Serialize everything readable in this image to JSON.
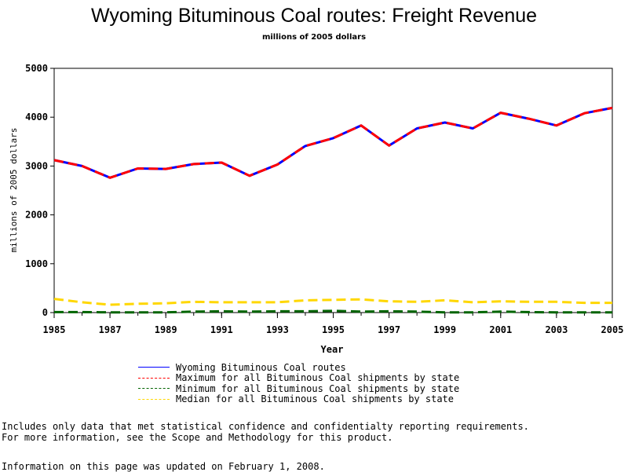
{
  "title": "Wyoming Bituminous Coal routes: Freight Revenue",
  "subtitle": "millions of 2005 dollars",
  "chart_data": {
    "type": "line",
    "title": "Wyoming Bituminous Coal routes: Freight Revenue",
    "subtitle": "millions of 2005 dollars",
    "xlabel": "Year",
    "ylabel": "millions of 2005 dollars",
    "x": [
      1985,
      1986,
      1987,
      1988,
      1989,
      1990,
      1991,
      1992,
      1993,
      1994,
      1995,
      1996,
      1997,
      1998,
      1999,
      2000,
      2001,
      2002,
      2003,
      2004,
      2005
    ],
    "xlim": [
      1985,
      2005
    ],
    "ylim": [
      0,
      5000
    ],
    "x_ticks": [
      "1985",
      "1987",
      "1989",
      "1991",
      "1993",
      "1995",
      "1997",
      "1999",
      "2001",
      "2003",
      "2005"
    ],
    "y_ticks": [
      "0",
      "1000",
      "2000",
      "3000",
      "4000",
      "5000"
    ],
    "grid": false,
    "legend_position": "bottom",
    "series": [
      {
        "name": "Wyoming Bituminous Coal routes",
        "color": "#0000ff",
        "style": "solid",
        "values": [
          3120,
          3000,
          2760,
          2950,
          2940,
          3040,
          3070,
          2800,
          3030,
          3410,
          3570,
          3830,
          3420,
          3770,
          3890,
          3770,
          4090,
          3970,
          3830,
          4080,
          4190
        ]
      },
      {
        "name": "Maximum for all Bituminous Coal shipments by state",
        "color": "#ff0000",
        "style": "dashed",
        "values": [
          3120,
          3000,
          2760,
          2950,
          2940,
          3040,
          3070,
          2800,
          3030,
          3410,
          3570,
          3830,
          3420,
          3770,
          3890,
          3770,
          4090,
          3970,
          3830,
          4080,
          4190
        ]
      },
      {
        "name": "Minimum for all Bituminous Coal shipments by state",
        "color": "#006400",
        "style": "dashed",
        "values": [
          10,
          10,
          5,
          5,
          5,
          20,
          25,
          20,
          25,
          25,
          35,
          20,
          25,
          20,
          5,
          5,
          20,
          10,
          5,
          5,
          5
        ]
      },
      {
        "name": "Median for all Bituminous Coal shipments by state",
        "color": "#ffd700",
        "style": "dashed",
        "values": [
          280,
          210,
          160,
          180,
          190,
          220,
          210,
          210,
          210,
          250,
          260,
          270,
          230,
          220,
          250,
          210,
          230,
          220,
          220,
          200,
          200
        ]
      }
    ]
  },
  "notes": [
    "Includes only data that met statistical confidence and confidentialty reporting requirements.",
    "For more information, see the Scope and Methodology for this product."
  ],
  "updated": "Information on this page was updated on February 1, 2008."
}
